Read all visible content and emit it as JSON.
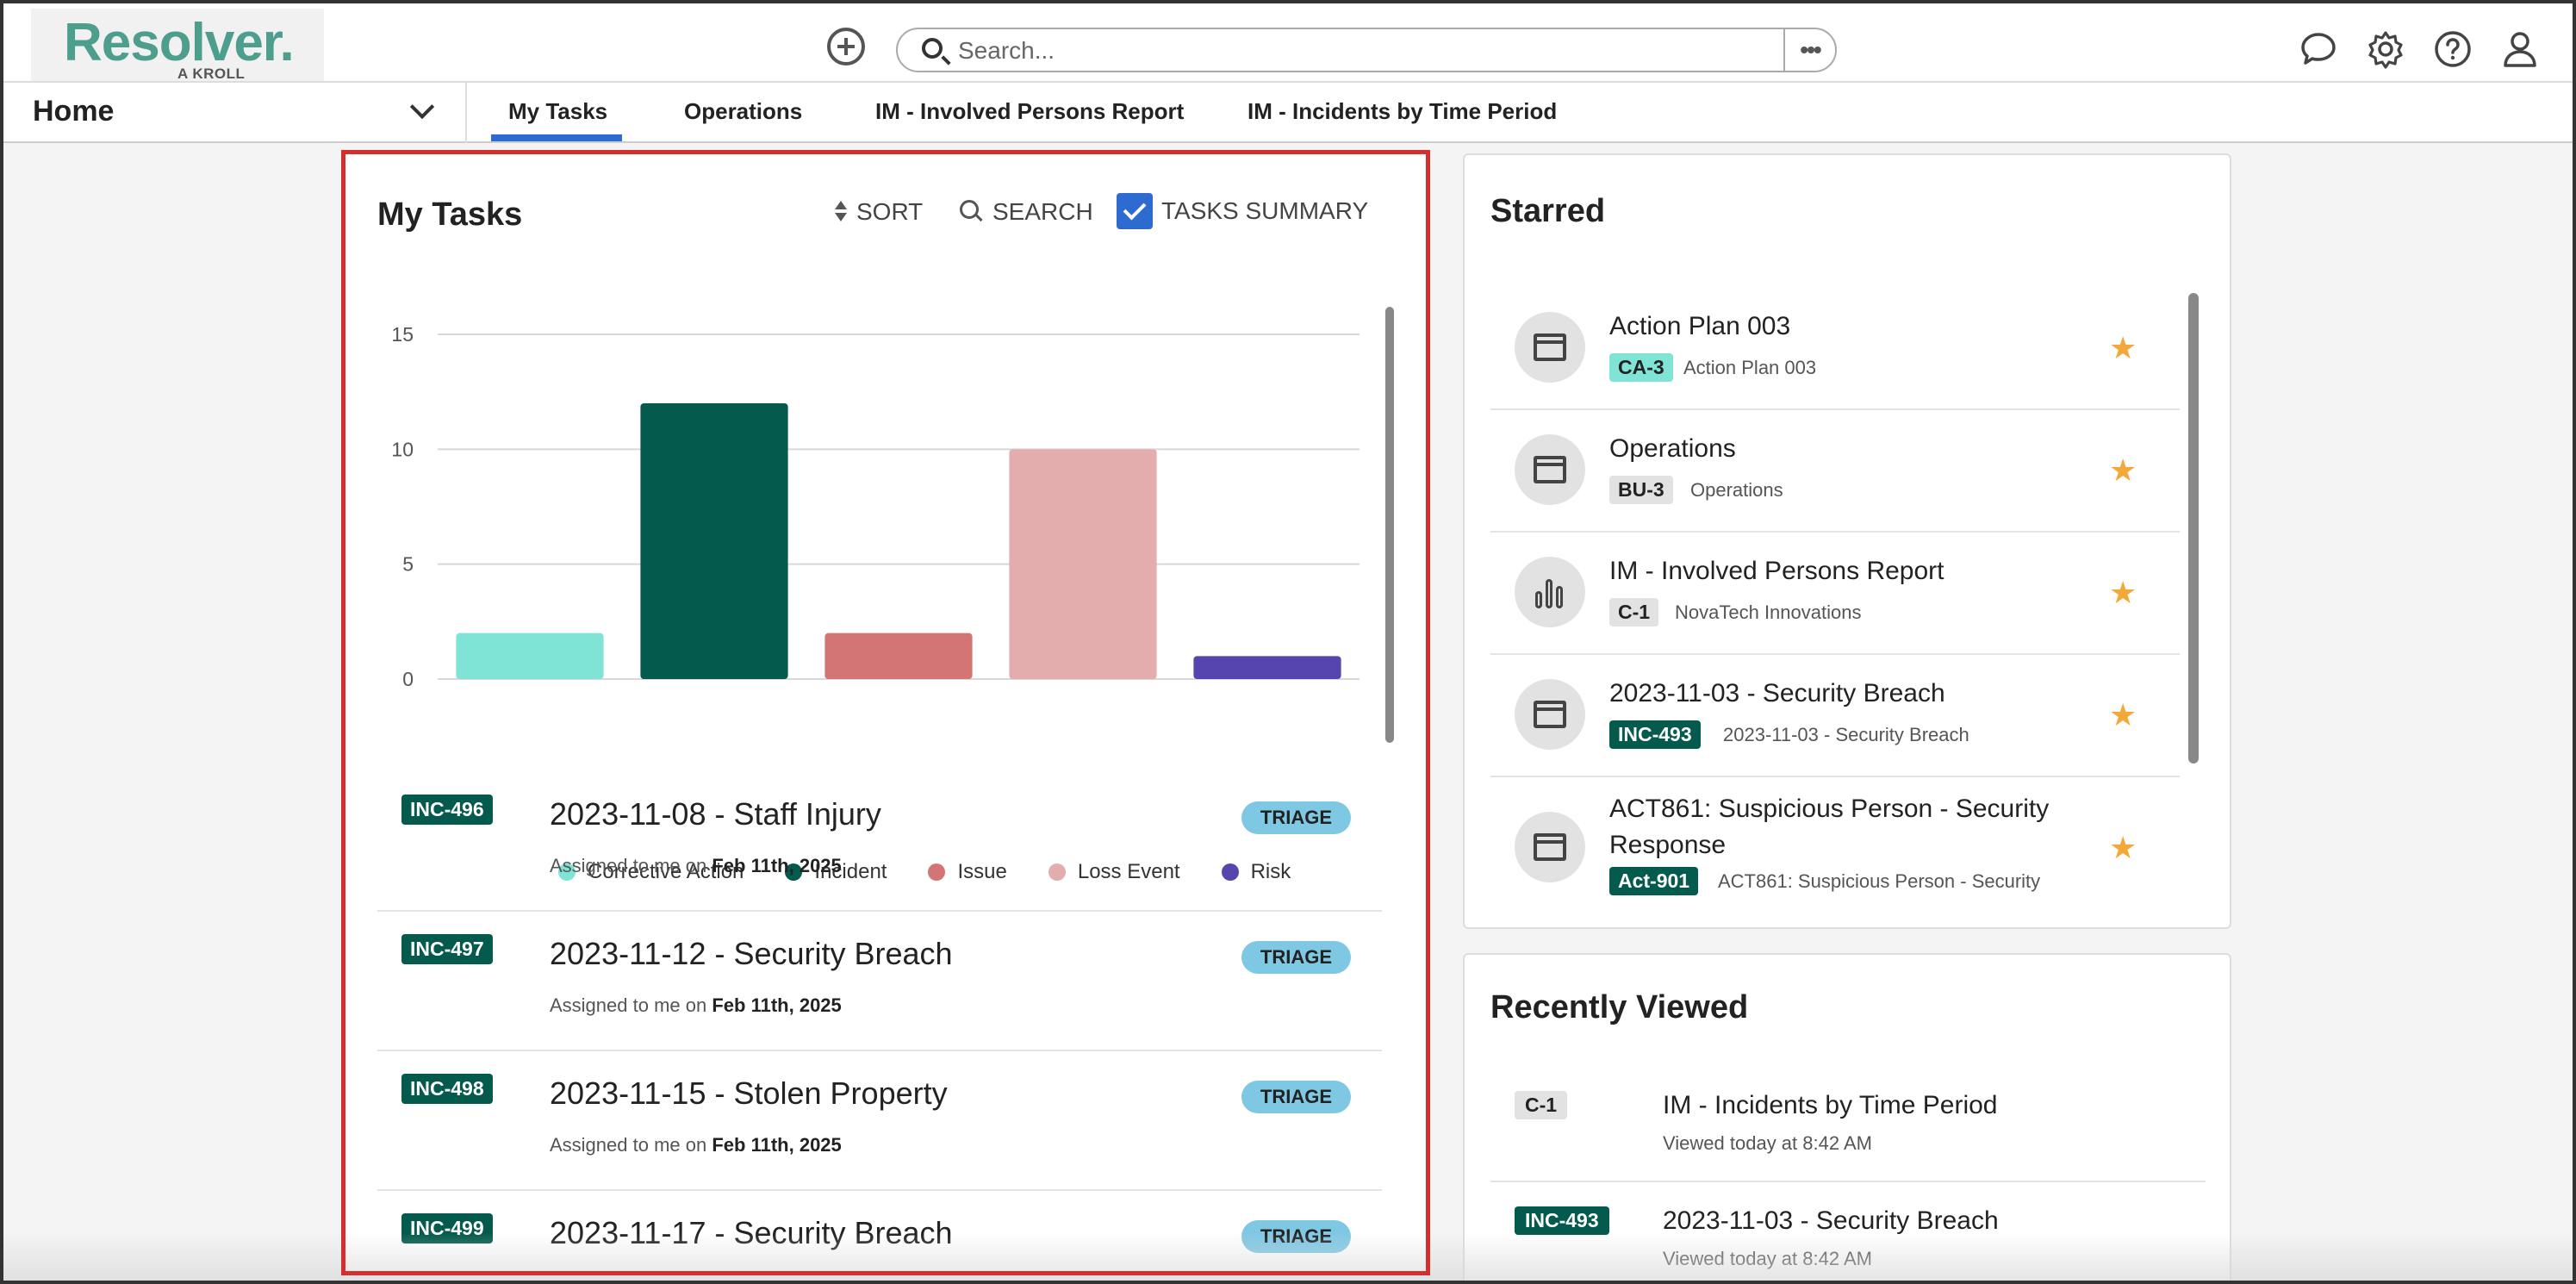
{
  "brand": {
    "name": "Resolver.",
    "tagline": "A KROLL BUSINESS",
    "color": "#4d9e8d"
  },
  "search": {
    "placeholder": "Search...",
    "more_label": "•••"
  },
  "header_icons": [
    "chat-icon",
    "gear-icon",
    "help-icon",
    "user-icon"
  ],
  "nav": {
    "home_label": "Home",
    "tabs": [
      {
        "label": "My Tasks",
        "active": true
      },
      {
        "label": "Operations"
      },
      {
        "label": "IM - Involved Persons Report"
      },
      {
        "label": "IM - Incidents by Time Period"
      }
    ]
  },
  "tasks": {
    "title": "My Tasks",
    "sort_label": "SORT",
    "search_label": "SEARCH",
    "summary_label": "TASKS SUMMARY",
    "summary_checked": true,
    "items": [
      {
        "code": "INC-496",
        "title": "2023-11-08 - Staff Injury",
        "assigned_prefix": "Assigned to me on",
        "date": "Feb 11th, 2025",
        "status": "TRIAGE"
      },
      {
        "code": "INC-497",
        "title": "2023-11-12 - Security Breach",
        "assigned_prefix": "Assigned to me on",
        "date": "Feb 11th, 2025",
        "status": "TRIAGE"
      },
      {
        "code": "INC-498",
        "title": "2023-11-15 - Stolen Property",
        "assigned_prefix": "Assigned to me on",
        "date": "Feb 11th, 2025",
        "status": "TRIAGE"
      },
      {
        "code": "INC-499",
        "title": "2023-11-17 - Security Breach",
        "assigned_prefix": "",
        "date": "",
        "status": "TRIAGE"
      }
    ]
  },
  "chart_data": {
    "type": "bar",
    "categories": [
      "Corrective Action",
      "Incident",
      "Issue",
      "Loss Event",
      "Risk"
    ],
    "values": [
      2,
      12,
      2,
      10,
      1
    ],
    "colors": [
      "#7fe3d6",
      "#045a4c",
      "#d47575",
      "#e3adad",
      "#5645ad"
    ],
    "ylim": [
      0,
      15
    ],
    "yticks": [
      0,
      5,
      10,
      15
    ],
    "grid": true,
    "legend": "bottom",
    "title": "",
    "xlabel": "",
    "ylabel": ""
  },
  "starred": {
    "title": "Starred",
    "items": [
      {
        "icon": "window-icon",
        "title": "Action Plan 003",
        "code": "CA-3",
        "code_bg": "#7fe3d6",
        "code_fg": "#222",
        "desc": "Action Plan 003"
      },
      {
        "icon": "window-icon",
        "title": "Operations",
        "code": "BU-3",
        "code_bg": "#e2e2e2",
        "code_fg": "#222",
        "desc": "Operations"
      },
      {
        "icon": "bar-chart-icon",
        "title": "IM - Involved Persons Report",
        "code": "C-1",
        "code_bg": "#e2e2e2",
        "code_fg": "#222",
        "desc": "NovaTech Innovations"
      },
      {
        "icon": "window-icon",
        "title": "2023-11-03 - Security Breach",
        "code": "INC-493",
        "code_bg": "#045a4c",
        "code_fg": "#fff",
        "desc": "2023-11-03 - Security Breach"
      },
      {
        "icon": "window-icon",
        "title": "ACT861: Suspicious Person - Security Response",
        "code": "Act-901",
        "code_bg": "#045a4c",
        "code_fg": "#fff",
        "desc": "ACT861: Suspicious Person - Security"
      }
    ]
  },
  "recent": {
    "title": "Recently Viewed",
    "items": [
      {
        "code": "C-1",
        "code_bg": "#e2e2e2",
        "code_fg": "#222",
        "title": "IM - Incidents by Time Period",
        "viewed": "Viewed today at 8:42 AM"
      },
      {
        "code": "INC-493",
        "code_bg": "#045a4c",
        "code_fg": "#fff",
        "title": "2023-11-03 - Security Breach",
        "viewed": "Viewed today at 8:42 AM"
      }
    ]
  }
}
